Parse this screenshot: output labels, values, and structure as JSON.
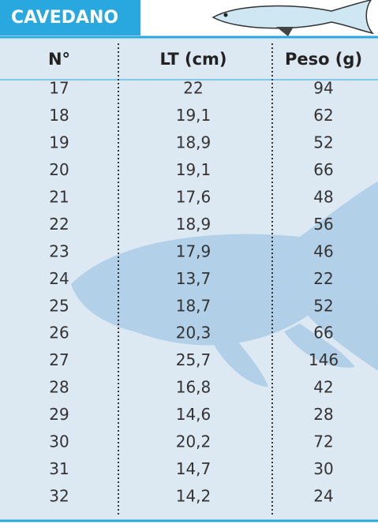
{
  "header": {
    "title": "CAVEDANO"
  },
  "table": {
    "columns": [
      "N°",
      "LT (cm)",
      "Peso (g)"
    ],
    "rows": [
      [
        "17",
        "22",
        "94"
      ],
      [
        "18",
        "19,1",
        "62"
      ],
      [
        "19",
        "18,9",
        "52"
      ],
      [
        "20",
        "19,1",
        "66"
      ],
      [
        "21",
        "17,6",
        "48"
      ],
      [
        "22",
        "18,9",
        "56"
      ],
      [
        "23",
        "17,9",
        "46"
      ],
      [
        "24",
        "13,7",
        "22"
      ],
      [
        "25",
        "18,7",
        "52"
      ],
      [
        "26",
        "20,3",
        "66"
      ],
      [
        "27",
        "25,7",
        "146"
      ],
      [
        "28",
        "16,8",
        "42"
      ],
      [
        "29",
        "14,6",
        "28"
      ],
      [
        "30",
        "20,2",
        "72"
      ],
      [
        "31",
        "14,7",
        "30"
      ],
      [
        "32",
        "14,2",
        "24"
      ]
    ]
  }
}
